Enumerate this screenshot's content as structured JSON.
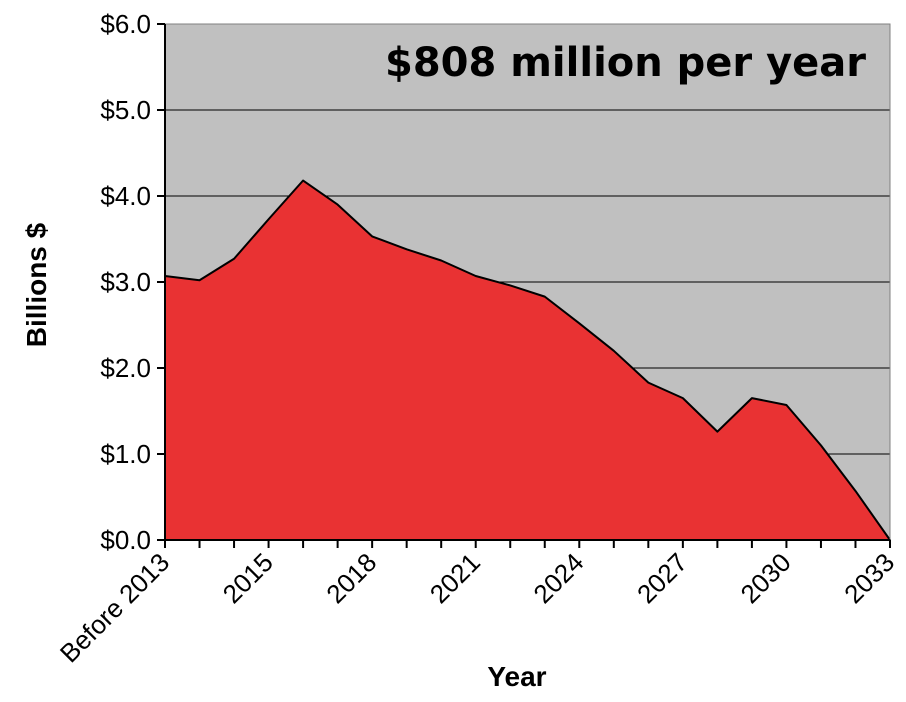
{
  "chart_data": {
    "type": "area",
    "annotation": "$808 million per year",
    "xlabel": "Year",
    "ylabel": "Billions $",
    "ylim": [
      0,
      6
    ],
    "yticks": [
      "$0.0",
      "$1.0",
      "$2.0",
      "$3.0",
      "$4.0",
      "$5.0",
      "$6.0"
    ],
    "xtick_labels": [
      "Before 2013",
      "2015",
      "2018",
      "2021",
      "2024",
      "2027",
      "2030",
      "2033"
    ],
    "x": [
      "Before 2013",
      "2013",
      "2014",
      "2015",
      "2016",
      "2017",
      "2018",
      "2019",
      "2020",
      "2021",
      "2022",
      "2023",
      "2024",
      "2025",
      "2026",
      "2027",
      "2028",
      "2029",
      "2030",
      "2031",
      "2032",
      "2033"
    ],
    "values": [
      3.07,
      3.02,
      3.27,
      3.73,
      4.18,
      3.9,
      3.53,
      3.38,
      3.25,
      3.07,
      2.96,
      2.83,
      2.52,
      2.2,
      1.83,
      1.65,
      1.26,
      1.65,
      1.57,
      1.1,
      0.57,
      0.0
    ],
    "grid": true,
    "colors": {
      "fill": "#e93233",
      "plot_background": "#c0c0c0",
      "gridline": "#000000"
    }
  }
}
